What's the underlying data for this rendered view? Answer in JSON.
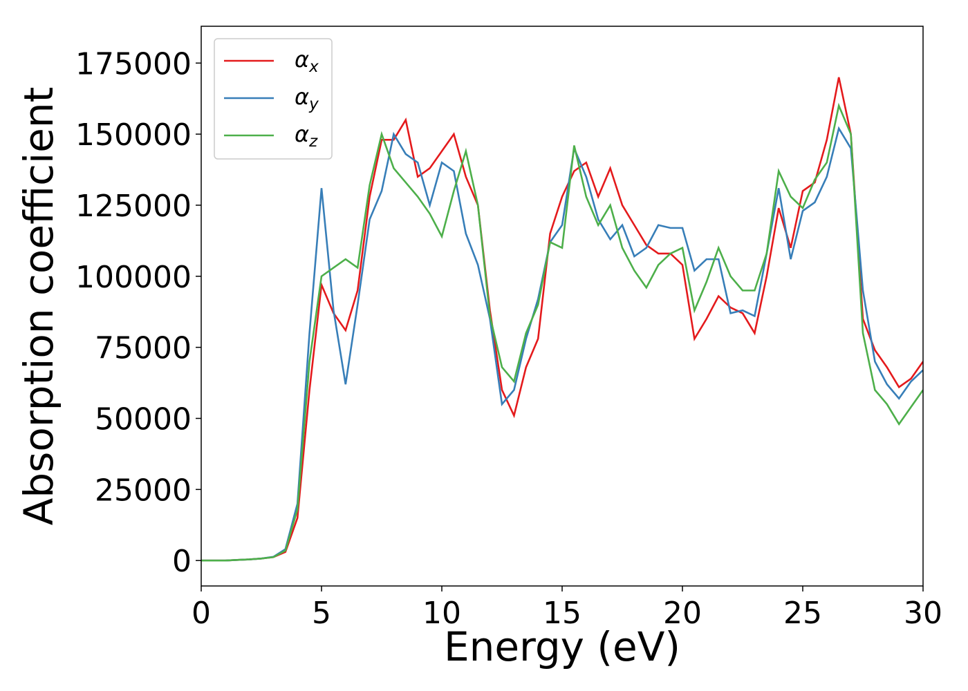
{
  "chart_data": {
    "type": "line",
    "xlabel": "Energy (eV)",
    "ylabel": "Absorption coefficient",
    "xlim": [
      0,
      30
    ],
    "ylim": [
      -8950,
      187950
    ],
    "xticks": [
      0,
      5,
      10,
      15,
      20,
      25,
      30
    ],
    "yticks": [
      0,
      25000,
      50000,
      75000,
      100000,
      125000,
      150000,
      175000
    ],
    "grid": false,
    "legend": "upper left",
    "x": [
      0,
      0.5,
      1,
      1.5,
      2,
      2.5,
      3,
      3.5,
      4,
      4.5,
      5,
      5.5,
      6,
      6.5,
      7,
      7.5,
      8,
      8.5,
      9,
      9.5,
      10,
      10.5,
      11,
      11.5,
      12,
      12.5,
      13,
      13.5,
      14,
      14.5,
      15,
      15.5,
      16,
      16.5,
      17,
      17.5,
      18,
      18.5,
      19,
      19.5,
      20,
      20.5,
      21,
      21.5,
      22,
      22.5,
      23,
      23.5,
      24,
      24.5,
      25,
      25.5,
      26,
      26.5,
      27,
      27.5,
      28,
      28.5,
      29,
      29.5,
      30
    ],
    "series": [
      {
        "name": "αx",
        "color": "#e41a1c",
        "values": [
          0,
          0,
          0,
          200,
          400,
          700,
          1200,
          3000,
          15000,
          60000,
          97000,
          87000,
          81000,
          95000,
          128000,
          148000,
          148000,
          155000,
          135000,
          138000,
          144000,
          150000,
          135000,
          125000,
          88000,
          60000,
          51000,
          68000,
          78000,
          115000,
          128000,
          137000,
          140000,
          128000,
          138000,
          125000,
          118000,
          111000,
          108000,
          108000,
          104000,
          78000,
          85000,
          93000,
          89000,
          87000,
          80000,
          100000,
          124000,
          110000,
          130000,
          133000,
          148000,
          170000,
          150000,
          85000,
          74000,
          68000,
          61000,
          64000,
          70000
        ]
      },
      {
        "name": "αy",
        "color": "#377eb8",
        "values": [
          0,
          0,
          0,
          200,
          400,
          700,
          1300,
          4000,
          20000,
          80000,
          131000,
          88000,
          62000,
          90000,
          120000,
          130000,
          150000,
          143000,
          140000,
          125000,
          140000,
          137000,
          115000,
          104000,
          85000,
          55000,
          60000,
          78000,
          92000,
          112000,
          118000,
          145000,
          135000,
          120000,
          113000,
          118000,
          107000,
          110000,
          118000,
          117000,
          117000,
          102000,
          106000,
          106000,
          87000,
          88000,
          86000,
          108000,
          131000,
          106000,
          123000,
          126000,
          135000,
          152000,
          145000,
          95000,
          70000,
          62000,
          57000,
          63000,
          67000
        ]
      },
      {
        "name": "αz",
        "color": "#4daf4a",
        "values": [
          0,
          0,
          0,
          200,
          400,
          700,
          1200,
          3500,
          18000,
          70000,
          100000,
          103000,
          106000,
          103000,
          132000,
          150000,
          138000,
          133000,
          128000,
          122000,
          114000,
          130000,
          144000,
          125000,
          86000,
          68000,
          63000,
          80000,
          90000,
          112000,
          110000,
          146000,
          128000,
          118000,
          125000,
          110000,
          102000,
          96000,
          104000,
          108000,
          110000,
          88000,
          98000,
          110000,
          100000,
          95000,
          95000,
          108000,
          137000,
          128000,
          124000,
          134000,
          140000,
          160000,
          150000,
          80000,
          60000,
          55000,
          48000,
          54000,
          60000
        ]
      }
    ]
  }
}
